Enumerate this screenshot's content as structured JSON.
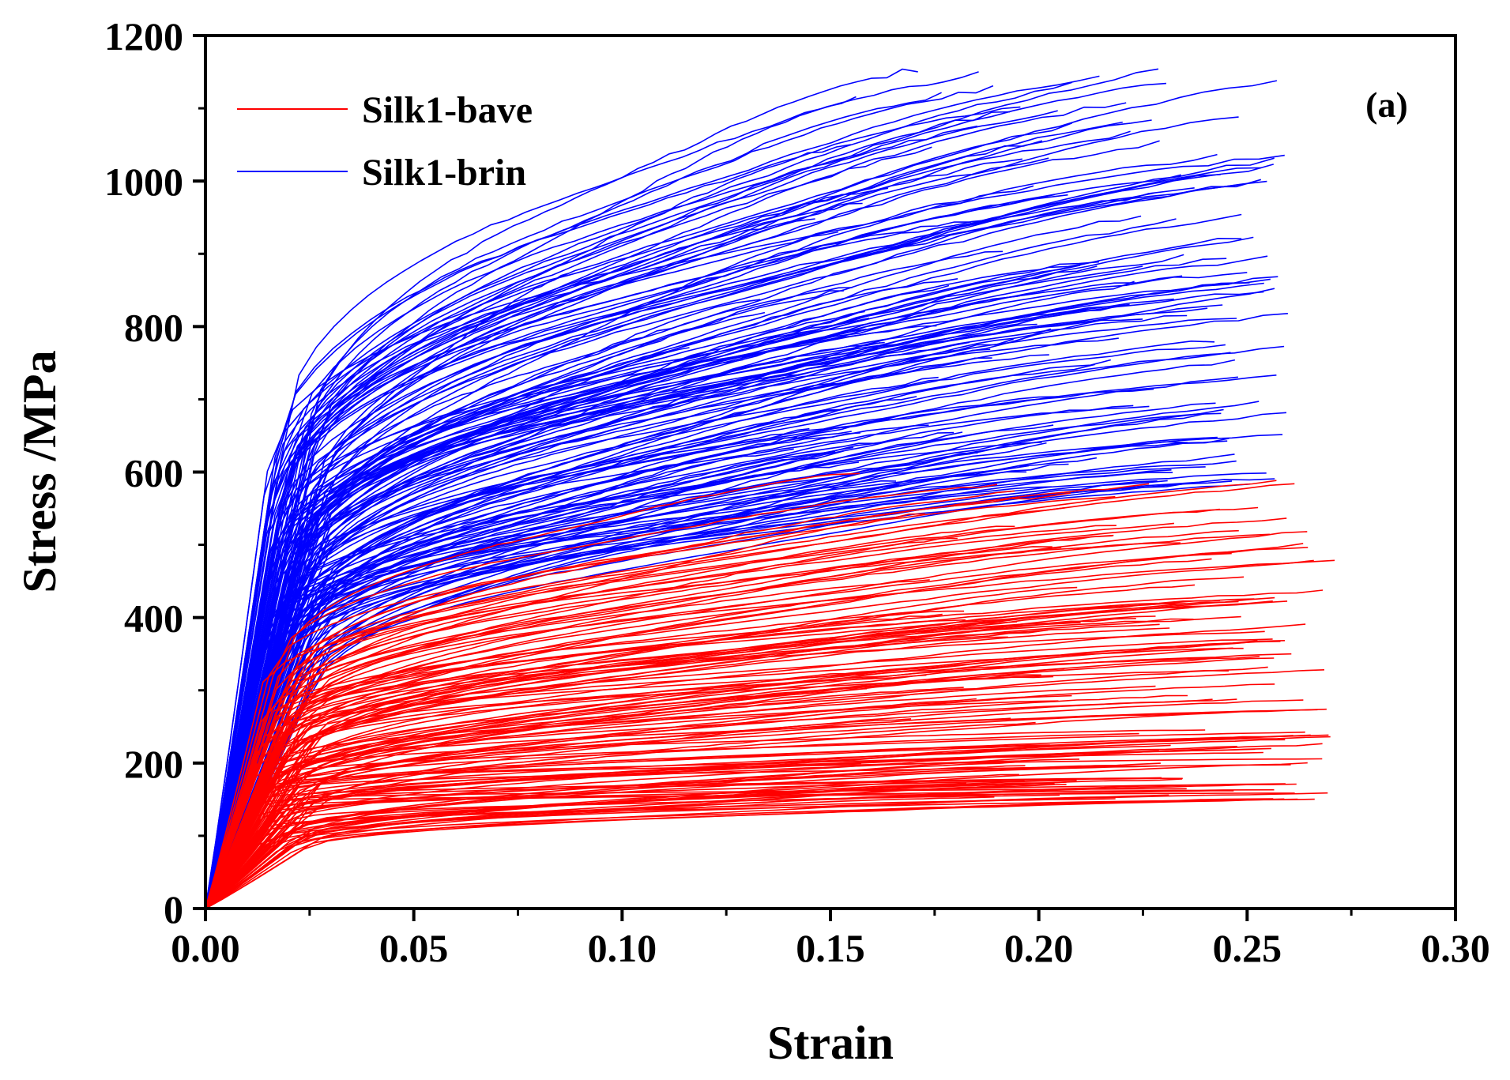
{
  "chart_data": {
    "type": "line",
    "panel_label": "(a)",
    "xlabel": "Strain",
    "ylabel": "Stress /MPa",
    "xlim": [
      0,
      0.3
    ],
    "ylim": [
      0,
      1200
    ],
    "x_ticks": [
      0.0,
      0.05,
      0.1,
      0.15,
      0.2,
      0.25,
      0.3
    ],
    "x_tick_labels": [
      "0.00",
      "0.05",
      "0.10",
      "0.15",
      "0.20",
      "0.25",
      "0.30"
    ],
    "y_ticks": [
      0,
      200,
      400,
      600,
      800,
      1000,
      1200
    ],
    "y_tick_labels": [
      "0",
      "200",
      "400",
      "600",
      "800",
      "1000",
      "1200"
    ],
    "grid": false,
    "legend_position": "top-left",
    "series": [
      {
        "name": "Silk1-bave",
        "color": "#ff0000",
        "curve_count": 150,
        "yield_strain_range": [
          0.012,
          0.024
        ],
        "yield_stress_range": [
          60,
          320
        ],
        "break_strain_range": [
          0.12,
          0.27
        ],
        "break_stress_range": [
          150,
          600
        ],
        "highlight_curves": [
          {
            "break_strain": 0.271,
            "break_stress": 478
          },
          {
            "break_strain": 0.268,
            "break_stress": 206
          },
          {
            "break_strain": 0.264,
            "break_stress": 390
          },
          {
            "break_strain": 0.255,
            "break_stress": 332
          },
          {
            "break_strain": 0.234,
            "break_stress": 504
          },
          {
            "break_strain": 0.19,
            "break_stress": 583
          },
          {
            "break_strain": 0.157,
            "break_stress": 600
          },
          {
            "break_strain": 0.205,
            "break_stress": 156
          }
        ]
      },
      {
        "name": "Silk1-brin",
        "color": "#0000ff",
        "curve_count": 170,
        "yield_strain_range": [
          0.014,
          0.026
        ],
        "yield_stress_range": [
          260,
          620
        ],
        "break_strain_range": [
          0.085,
          0.26
        ],
        "break_stress_range": [
          580,
          1155
        ],
        "highlight_curves": [
          {
            "break_strain": 0.171,
            "break_stress": 1155
          },
          {
            "break_strain": 0.208,
            "break_stress": 1133
          },
          {
            "break_strain": 0.259,
            "break_stress": 1035
          },
          {
            "break_strain": 0.229,
            "break_stress": 1052
          },
          {
            "break_strain": 0.25,
            "break_stress": 877
          },
          {
            "break_strain": 0.254,
            "break_stress": 850
          },
          {
            "break_strain": 0.247,
            "break_stress": 624
          },
          {
            "break_strain": 0.087,
            "break_stress": 872
          }
        ]
      }
    ]
  }
}
